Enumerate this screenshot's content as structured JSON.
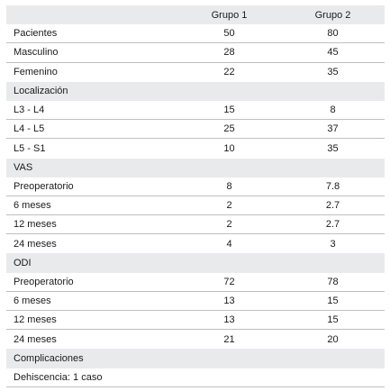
{
  "header": {
    "label": "",
    "group1": "Grupo 1",
    "group2": "Grupo 2"
  },
  "rows": [
    {
      "label": "Pacientes",
      "g1": "50",
      "g2": "80"
    },
    {
      "label": "Masculino",
      "g1": "28",
      "g2": "45"
    },
    {
      "label": "Femenino",
      "g1": "22",
      "g2": "35"
    }
  ],
  "sections": [
    {
      "title": "Localización",
      "rows": [
        {
          "label": "L3 - L4",
          "g1": "15",
          "g2": "8"
        },
        {
          "label": "L4 - L5",
          "g1": "25",
          "g2": "37"
        },
        {
          "label": "L5 - S1",
          "g1": "10",
          "g2": "35"
        }
      ]
    },
    {
      "title": "VAS",
      "rows": [
        {
          "label": "Preoperatorio",
          "g1": "8",
          "g2": "7.8"
        },
        {
          "label": "6 meses",
          "g1": "2",
          "g2": "2.7"
        },
        {
          "label": "12 meses",
          "g1": "2",
          "g2": "2.7"
        },
        {
          "label": "24 meses",
          "g1": "4",
          "g2": "3"
        }
      ]
    },
    {
      "title": "ODI",
      "rows": [
        {
          "label": "Preoperatorio",
          "g1": "72",
          "g2": "78"
        },
        {
          "label": "6 meses",
          "g1": "13",
          "g2": "15"
        },
        {
          "label": "12 meses",
          "g1": "13",
          "g2": "15"
        },
        {
          "label": "24 meses",
          "g1": "21",
          "g2": "20"
        }
      ]
    },
    {
      "title": "Complicaciones",
      "note": "Dehiscencia: 1 caso"
    }
  ]
}
